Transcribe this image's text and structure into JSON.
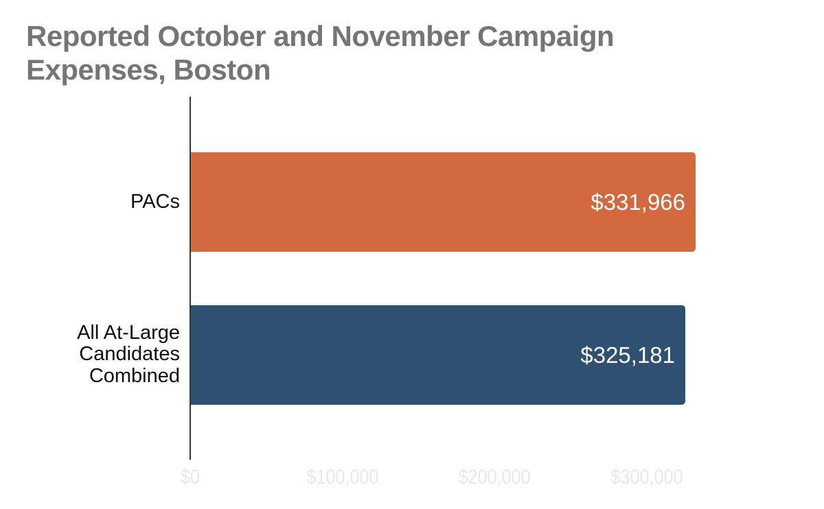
{
  "chart_data": {
    "type": "bar",
    "orientation": "horizontal",
    "title": "Reported October and November Campaign Expenses, Boston",
    "categories": [
      "PACs",
      "All At-Large Candidates Combined"
    ],
    "values": [
      331966,
      325181
    ],
    "value_labels": [
      "$331,966",
      "$325,181"
    ],
    "bar_colors": [
      "#d3693f",
      "#2e5071"
    ],
    "x_ticks": [
      {
        "value": 0,
        "label": "$0"
      },
      {
        "value": 100000,
        "label": "$100,000"
      },
      {
        "value": 200000,
        "label": "$200,000"
      },
      {
        "value": 300000,
        "label": "$300,000"
      }
    ],
    "xlim": [
      0,
      400000
    ],
    "grid": false,
    "legend": false
  },
  "colors": {
    "background": "#ffffff",
    "title": "#757575",
    "axis_line": "#333333",
    "tick_labels": "#e8e8e8",
    "category_labels": "#0d0d0d",
    "value_labels": "#ffffff"
  }
}
